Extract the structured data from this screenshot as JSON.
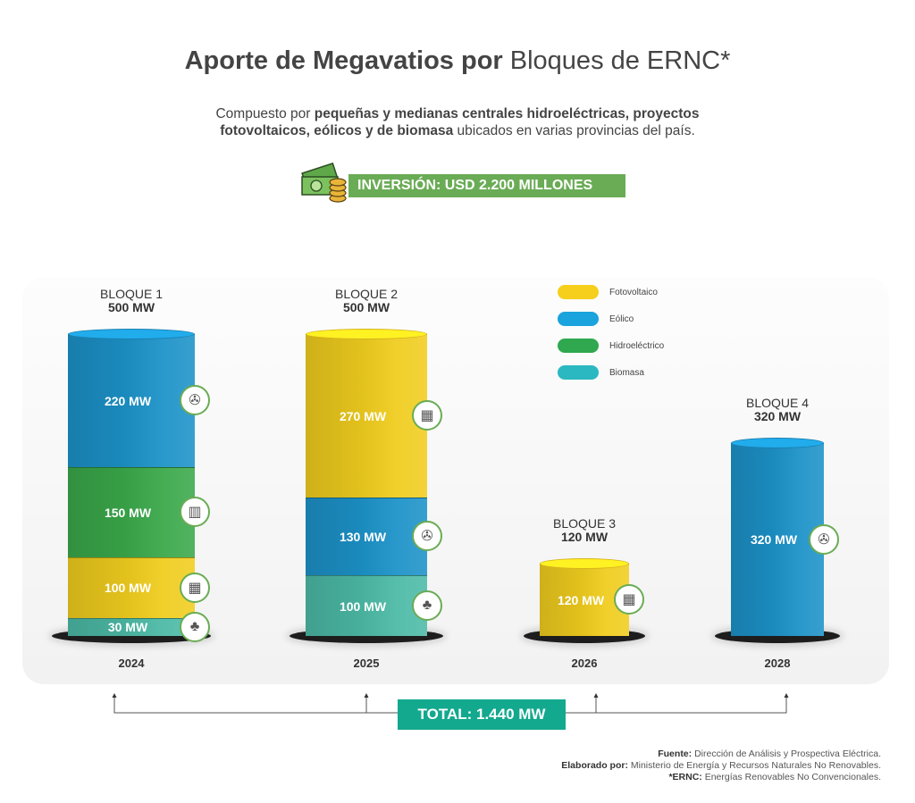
{
  "header": {
    "title_bold": "Aporte de Megavatios por",
    "title_light": "Bloques de ERNC*",
    "subtitle_1": "Compuesto por",
    "subtitle_bold": "pequeñas y medianas centrales hidroeléctricas, proyectos fotovoltaicos, eólicos y de biomasa",
    "subtitle_2": "ubicados en varias provincias del país.",
    "investment": "INVERSIÓN: USD 2.200 MILLONES",
    "investment_icon": "money-coins-icon"
  },
  "chart_data": {
    "type": "bar",
    "stacked": true,
    "categories": [
      "2024",
      "2025",
      "2026",
      "2028"
    ],
    "blocks": [
      {
        "name": "BLOQUE 1",
        "total_label": "500 MW",
        "year": "2024",
        "segments": [
          {
            "type": "Biomasa",
            "value": 30,
            "label": "30 MW"
          },
          {
            "type": "Fotovoltaico",
            "value": 100,
            "label": "100 MW"
          },
          {
            "type": "Hidroeléctrico",
            "value": 150,
            "label": "150 MW"
          },
          {
            "type": "Eólico",
            "value": 220,
            "label": "220 MW"
          }
        ]
      },
      {
        "name": "BLOQUE 2",
        "total_label": "500 MW",
        "year": "2025",
        "segments": [
          {
            "type": "Biomasa",
            "value": 100,
            "label": "100 MW"
          },
          {
            "type": "Eólico",
            "value": 130,
            "label": "130 MW"
          },
          {
            "type": "Fotovoltaico",
            "value": 270,
            "label": "270 MW"
          }
        ]
      },
      {
        "name": "BLOQUE 3",
        "total_label": "120 MW",
        "year": "2026",
        "segments": [
          {
            "type": "Fotovoltaico",
            "value": 120,
            "label": "120 MW"
          }
        ]
      },
      {
        "name": "BLOQUE 4",
        "total_label": "320 MW",
        "year": "2028",
        "segments": [
          {
            "type": "Eólico",
            "value": 320,
            "label": "320 MW"
          }
        ]
      }
    ],
    "legend": [
      {
        "name": "Fotovoltaico",
        "color": "#f5cf1b"
      },
      {
        "name": "Eólico",
        "color": "#1aa3dc"
      },
      {
        "name": "Hidroeléctrico",
        "color": "#2fa84f"
      },
      {
        "name": "Biomasa",
        "color": "#2bb8c0"
      }
    ],
    "segment_colors": {
      "Fotovoltaico": "#f0cd1e",
      "Eólico": "#1c92c8",
      "Hidroeléctrico": "#3aa84a",
      "Biomasa": "#4cbaa6"
    },
    "segment_icons": {
      "Fotovoltaico": "solar-panel-icon",
      "Eólico": "wind-turbine-icon",
      "Hidroeléctrico": "hydro-dam-icon",
      "Biomasa": "biomass-icon"
    },
    "legend_position": "top-right"
  },
  "total": "TOTAL: 1.440 MW",
  "footer": {
    "source_label": "Fuente:",
    "source": "Dirección de Análisis y Prospectiva Eléctrica.",
    "made_by_label": "Elaborado por:",
    "made_by": "Ministerio de Energía y Recursos Naturales No Renovables.",
    "ernc_label": "*ERNC:",
    "ernc": "Energías Renovables No Convencionales."
  }
}
